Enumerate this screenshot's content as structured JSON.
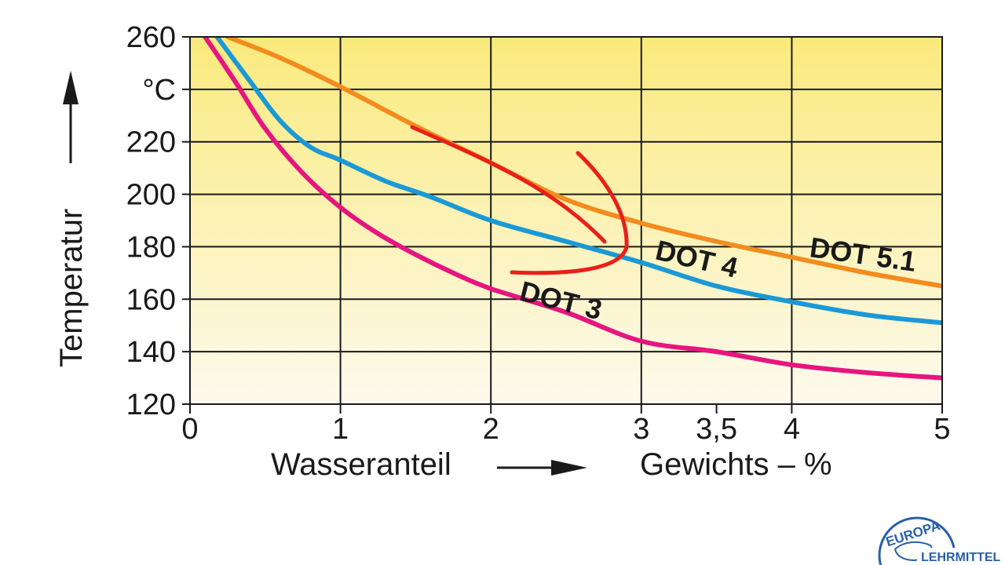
{
  "chart_data": {
    "type": "line",
    "title": "",
    "xlabel": "Wasseranteil",
    "xunit": "Gewichts – %",
    "ylabel": "Temperatur",
    "yunit": "°C",
    "xlim": [
      0,
      5
    ],
    "ylim": [
      120,
      260
    ],
    "x_ticks": [
      "0",
      "1",
      "2",
      "3",
      "3,5",
      "4",
      "5"
    ],
    "x_tick_values": [
      0,
      1,
      2,
      3,
      3.5,
      4,
      5
    ],
    "y_ticks": [
      "260",
      "°C",
      "220",
      "200",
      "180",
      "160",
      "140",
      "120"
    ],
    "y_tick_values": [
      260,
      240,
      220,
      200,
      180,
      160,
      140,
      120
    ],
    "grid": true,
    "series": [
      {
        "name": "DOT 3",
        "color": "#e6157f",
        "points": [
          [
            0.1,
            260
          ],
          [
            0.3,
            243
          ],
          [
            0.5,
            225
          ],
          [
            0.75,
            208
          ],
          [
            1,
            195
          ],
          [
            1.25,
            185
          ],
          [
            1.5,
            177
          ],
          [
            1.75,
            170
          ],
          [
            2,
            164
          ],
          [
            2.5,
            155
          ],
          [
            3,
            144
          ],
          [
            3.5,
            140
          ],
          [
            4,
            135
          ],
          [
            4.5,
            132
          ],
          [
            5,
            130
          ]
        ]
      },
      {
        "name": "DOT 4",
        "color": "#1b99d6",
        "points": [
          [
            0.18,
            260
          ],
          [
            0.4,
            243
          ],
          [
            0.6,
            228
          ],
          [
            0.8,
            218
          ],
          [
            1,
            213
          ],
          [
            1.3,
            205
          ],
          [
            1.6,
            199
          ],
          [
            2,
            190
          ],
          [
            2.5,
            182
          ],
          [
            3,
            174
          ],
          [
            3.5,
            165
          ],
          [
            4,
            159
          ],
          [
            4.5,
            154
          ],
          [
            5,
            151
          ]
        ]
      },
      {
        "name": "DOT 5.1",
        "color": "#f28c1e",
        "points": [
          [
            0.25,
            260
          ],
          [
            0.6,
            252
          ],
          [
            1,
            241
          ],
          [
            1.5,
            226
          ],
          [
            2,
            212
          ],
          [
            2.5,
            198
          ],
          [
            3,
            189
          ],
          [
            3.5,
            182
          ],
          [
            4,
            176
          ],
          [
            4.5,
            170
          ],
          [
            5,
            165
          ]
        ]
      }
    ],
    "annotation": {
      "type": "hand-drawn-arrow",
      "color": "#e8201a"
    }
  },
  "logo": {
    "top_text": "EUROPA",
    "bottom_text": "LEHRMITTEL"
  }
}
